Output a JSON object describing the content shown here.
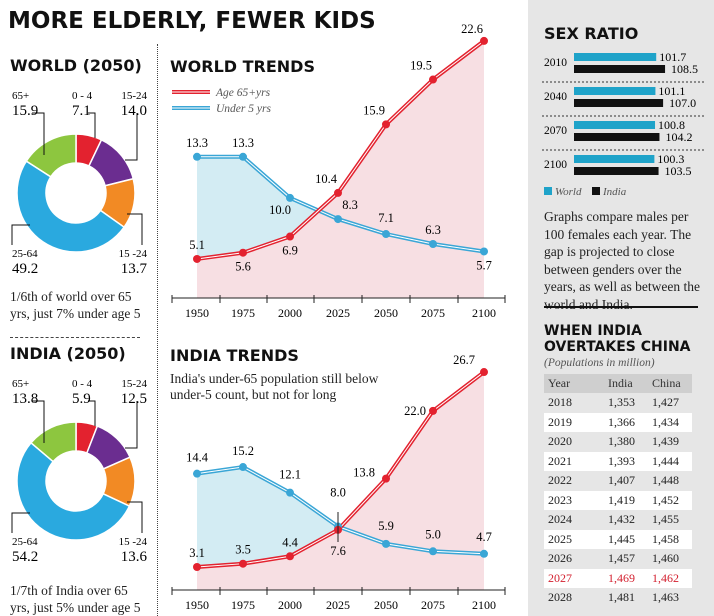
{
  "title": "MORE ELDERLY, FEWER KIDS",
  "world_donut": {
    "title": "WORLD (2050)",
    "caption": [
      "1/6th of  world over 65",
      "yrs, just 7% under age 5"
    ],
    "slices": [
      {
        "label": "0 - 4",
        "value": 7.1,
        "value_text": "7.1",
        "color": "#e3222f"
      },
      {
        "label": "15-24",
        "value": 14.0,
        "value_text": "14.0",
        "color": "#6b2d90"
      },
      {
        "label": "15 -24",
        "value": 13.7,
        "value_text": "13.7",
        "color": "#f28a24"
      },
      {
        "label": "25-64",
        "value": 49.2,
        "value_text": "49.2",
        "color": "#2aa9df"
      },
      {
        "label": "65+",
        "value": 15.9,
        "value_text": "15.9",
        "color": "#8dc63f"
      }
    ]
  },
  "india_donut": {
    "title": "INDIA (2050)",
    "caption": [
      "1/7th of  India over 65",
      "yrs, just 5% under age 5"
    ],
    "slices": [
      {
        "label": "0 - 4",
        "value": 5.9,
        "value_text": "5.9",
        "color": "#e3222f"
      },
      {
        "label": "15-24",
        "value": 12.5,
        "value_text": "12.5",
        "color": "#6b2d90"
      },
      {
        "label": "15 -24",
        "value": 13.6,
        "value_text": "13.6",
        "color": "#f28a24"
      },
      {
        "label": "25-64",
        "value": 54.2,
        "value_text": "54.2",
        "color": "#2aa9df"
      },
      {
        "label": "65+",
        "value": 13.8,
        "value_text": "13.8",
        "color": "#8dc63f"
      }
    ]
  },
  "chart_data": [
    {
      "type": "line",
      "title": "WORLD TRENDS",
      "categories": [
        "1950",
        "1975",
        "2000",
        "2025",
        "2050",
        "2075",
        "2100"
      ],
      "series": [
        {
          "name": "Age 65+yrs",
          "color": "#e3222f",
          "values": [
            5.1,
            5.6,
            6.9,
            10.4,
            15.9,
            19.5,
            22.6
          ]
        },
        {
          "name": "Under 5 yrs",
          "color": "#3aa6d6",
          "values": [
            13.3,
            13.3,
            10.0,
            8.3,
            7.1,
            6.3,
            5.7
          ]
        }
      ]
    },
    {
      "type": "line",
      "title": "INDIA TRENDS",
      "subtitle": [
        "India's under-65 population still below",
        "under-5 count, but not for long"
      ],
      "categories": [
        "1950",
        "1975",
        "2000",
        "2025",
        "2050",
        "2075",
        "2100"
      ],
      "series": [
        {
          "name": "Age 65+yrs",
          "color": "#e3222f",
          "values": [
            3.1,
            3.5,
            4.4,
            7.6,
            13.8,
            22.0,
            26.7
          ]
        },
        {
          "name": "Under 5 yrs",
          "color": "#3aa6d6",
          "values": [
            14.4,
            15.2,
            12.1,
            8.0,
            5.9,
            5.0,
            4.7
          ]
        }
      ]
    },
    {
      "type": "bar",
      "title": "SEX RATIO",
      "categories": [
        "2010",
        "2040",
        "2070",
        "2100"
      ],
      "series": [
        {
          "name": "World",
          "color": "#1fa3c9",
          "values": [
            101.7,
            101.1,
            100.8,
            100.3
          ]
        },
        {
          "name": "India",
          "color": "#111111",
          "values": [
            108.5,
            107.0,
            104.2,
            103.5
          ]
        }
      ],
      "value_texts": {
        "World": [
          "101.7",
          "101.1",
          "100.8",
          "100.3"
        ],
        "India": [
          "108.5",
          "107.0",
          "104.2",
          "103.5"
        ]
      },
      "note": "Graphs compare males per 100 females each year. The gap is projected to close between genders over the years, as well as between the world and India."
    },
    {
      "type": "table",
      "title": "WHEN INDIA OVERTAKES CHINA",
      "subtitle": "(Populations in million)",
      "columns": [
        "Year",
        "India",
        "China"
      ],
      "rows": [
        [
          "2018",
          "1,353",
          "1,427"
        ],
        [
          "2019",
          "1,366",
          "1,434"
        ],
        [
          "2020",
          "1,380",
          "1,439"
        ],
        [
          "2021",
          "1,393",
          "1,444"
        ],
        [
          "2022",
          "1,407",
          "1,448"
        ],
        [
          "2023",
          "1,419",
          "1,452"
        ],
        [
          "2024",
          "1,432",
          "1,455"
        ],
        [
          "2025",
          "1,445",
          "1,458"
        ],
        [
          "2026",
          "1,457",
          "1,460"
        ],
        [
          "2027",
          "1,469",
          "1,462"
        ],
        [
          "2028",
          "1,481",
          "1,463"
        ]
      ],
      "highlight_row": "2027",
      "highlight_color": "#d3202f"
    }
  ]
}
